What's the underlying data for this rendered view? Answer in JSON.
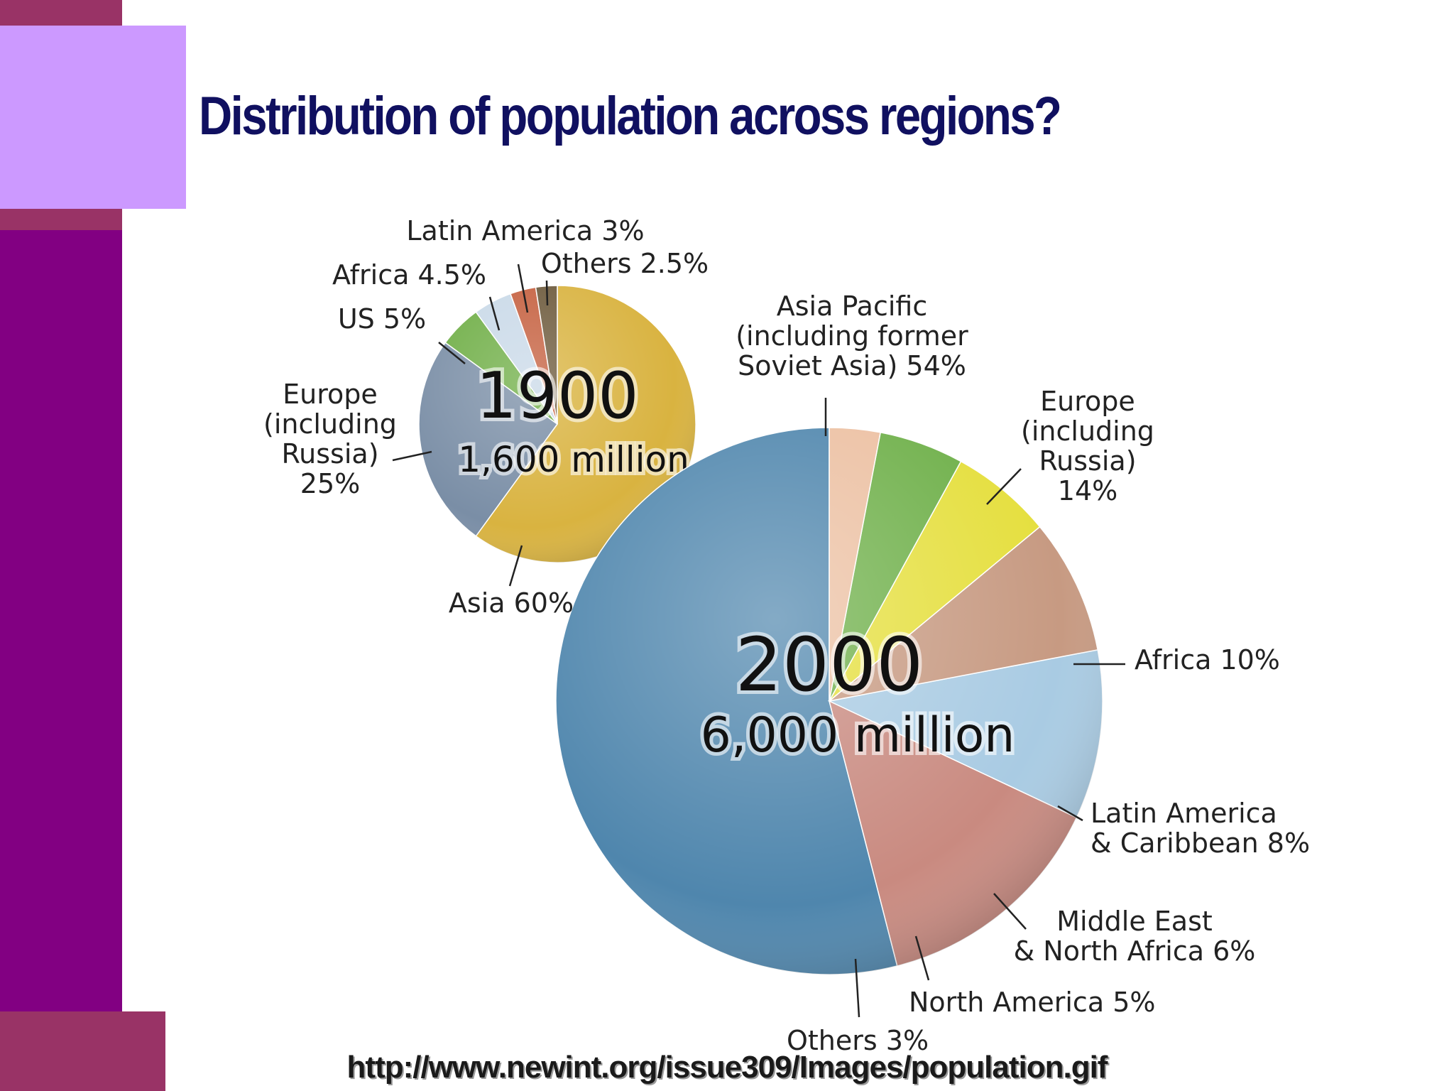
{
  "slide": {
    "title": "Distribution of population across regions?",
    "source": "http://www.newint.org/issue309/Images/population.gif",
    "colors": {
      "left_band": "#820082",
      "accent_dark": "#993366",
      "accent_light": "#cc99ff",
      "title": "#101060"
    }
  },
  "chart_data": [
    {
      "type": "pie",
      "year": "1900",
      "total_label": "1,600  million",
      "unit": "%",
      "slices": [
        {
          "label": "Asia",
          "text": "Asia 60%",
          "value": 60,
          "color": "#d9b340"
        },
        {
          "label": "Europe (including Russia)",
          "text": [
            "Europe",
            "(including",
            "Russia)",
            "25%"
          ],
          "value": 25,
          "color": "#7a8ea6"
        },
        {
          "label": "US",
          "text": "US 5%",
          "value": 5,
          "color": "#6fae46"
        },
        {
          "label": "Africa",
          "text": "Africa 4.5%",
          "value": 4.5,
          "color": "#c9d9e8"
        },
        {
          "label": "Latin America",
          "text": "Latin America 3%",
          "value": 3,
          "color": "#c5603f"
        },
        {
          "label": "Others",
          "text": "Others 2.5%",
          "value": 2.5,
          "color": "#6d5a3c"
        }
      ]
    },
    {
      "type": "pie",
      "year": "2000",
      "total_label": "6,000 million",
      "unit": "%",
      "slices": [
        {
          "label": "Asia Pacific (including former Soviet Asia)",
          "text": [
            "Asia Pacific",
            "(including former",
            "Soviet Asia) 54%"
          ],
          "value": 54,
          "color": "#4f86ad"
        },
        {
          "label": "Europe (including Russia)",
          "text": [
            "Europe",
            "(including",
            "Russia)",
            "14%"
          ],
          "value": 14,
          "color": "#c98a80"
        },
        {
          "label": "Africa",
          "text": "Africa 10%",
          "value": 10,
          "color": "#a9cbe3"
        },
        {
          "label": "Latin America & Caribbean",
          "text": [
            "Latin America",
            "& Caribbean 8%"
          ],
          "value": 8,
          "color": "#c79a82"
        },
        {
          "label": "Middle East & North Africa",
          "text": [
            "Middle East",
            "& North Africa 6%"
          ],
          "value": 6,
          "color": "#e5df3e"
        },
        {
          "label": "North America",
          "text": "North America 5%",
          "value": 5,
          "color": "#6fb04a"
        },
        {
          "label": "Others",
          "text": "Others 3%",
          "value": 3,
          "color": "#ecc0a2"
        }
      ]
    }
  ]
}
